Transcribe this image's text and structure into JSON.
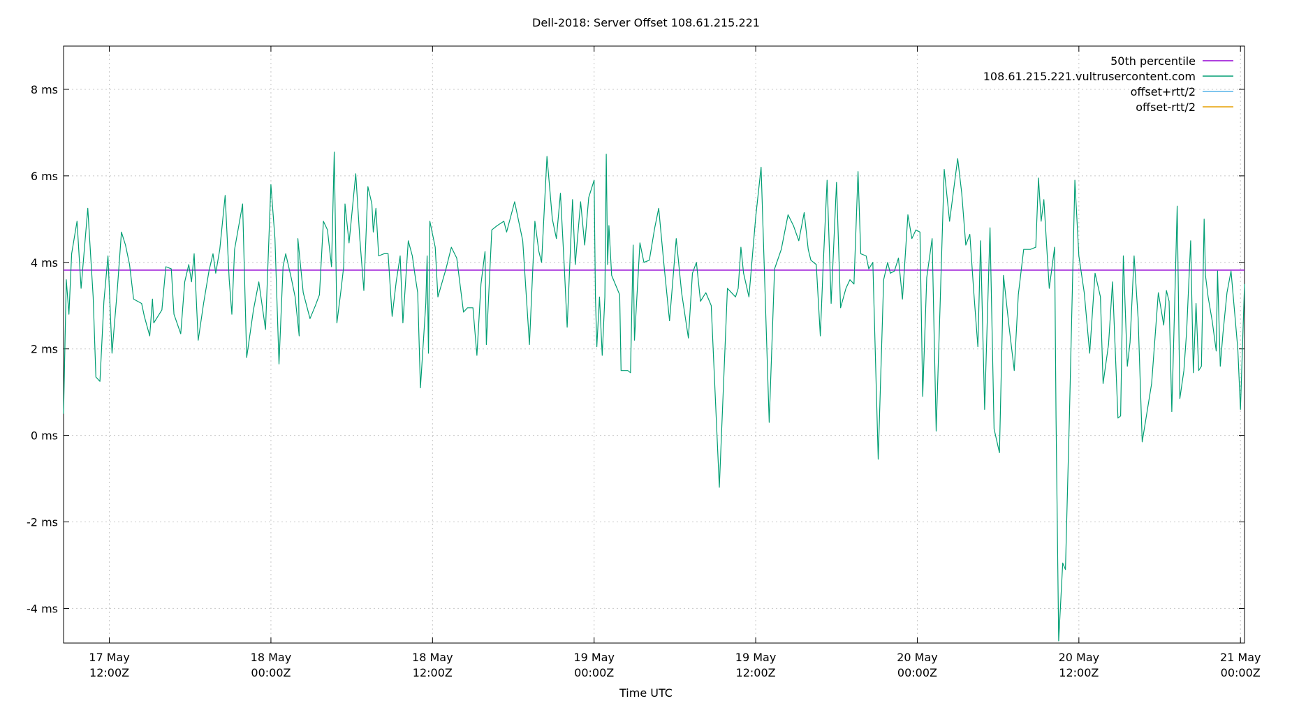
{
  "chart_data": {
    "type": "line",
    "title": "Dell-2018: Server Offset 108.61.215.221",
    "xlabel": "Time UTC",
    "ylabel": "",
    "x_unit": "hours since 17 May 00:00Z",
    "xlim": [
      8.6,
      96.3
    ],
    "ylim": [
      -4.8,
      9.0
    ],
    "grid": true,
    "legend_position": "top-right",
    "y_ticks": [
      {
        "value": -4,
        "label": "-4 ms"
      },
      {
        "value": -2,
        "label": "-2 ms"
      },
      {
        "value": 0,
        "label": "0 ms"
      },
      {
        "value": 2,
        "label": "2 ms"
      },
      {
        "value": 4,
        "label": "4 ms"
      },
      {
        "value": 6,
        "label": "6 ms"
      },
      {
        "value": 8,
        "label": "8 ms"
      }
    ],
    "x_ticks": [
      {
        "value": 12,
        "line1": "17 May",
        "line2": "12:00Z"
      },
      {
        "value": 24,
        "line1": "18 May",
        "line2": "00:00Z"
      },
      {
        "value": 36,
        "line1": "18 May",
        "line2": "12:00Z"
      },
      {
        "value": 48,
        "line1": "19 May",
        "line2": "00:00Z"
      },
      {
        "value": 60,
        "line1": "19 May",
        "line2": "12:00Z"
      },
      {
        "value": 72,
        "line1": "20 May",
        "line2": "00:00Z"
      },
      {
        "value": 84,
        "line1": "20 May",
        "line2": "12:00Z"
      },
      {
        "value": 96,
        "line1": "21 May",
        "line2": "00:00Z"
      }
    ],
    "series": [
      {
        "name": "50th percentile",
        "color": "#9400d3",
        "type": "hline",
        "value": 3.82
      },
      {
        "name": "108.61.215.221.vultrusercontent.com",
        "color": "#009e73",
        "points": [
          [
            8.6,
            0.5
          ],
          [
            8.8,
            3.6
          ],
          [
            9.0,
            2.8
          ],
          [
            9.2,
            4.2
          ],
          [
            9.6,
            4.95
          ],
          [
            9.9,
            3.4
          ],
          [
            10.4,
            5.25
          ],
          [
            10.8,
            3.2
          ],
          [
            11.0,
            1.35
          ],
          [
            11.3,
            1.25
          ],
          [
            11.6,
            3.1
          ],
          [
            11.9,
            4.15
          ],
          [
            12.2,
            1.9
          ],
          [
            12.6,
            3.4
          ],
          [
            12.9,
            4.7
          ],
          [
            13.2,
            4.4
          ],
          [
            13.5,
            3.95
          ],
          [
            13.8,
            3.15
          ],
          [
            14.1,
            3.1
          ],
          [
            14.4,
            3.05
          ],
          [
            14.6,
            2.75
          ],
          [
            15.0,
            2.3
          ],
          [
            15.2,
            3.15
          ],
          [
            15.3,
            2.6
          ],
          [
            15.6,
            2.75
          ],
          [
            15.9,
            2.9
          ],
          [
            16.2,
            3.9
          ],
          [
            16.6,
            3.85
          ],
          [
            16.8,
            2.8
          ],
          [
            17.3,
            2.35
          ],
          [
            17.6,
            3.55
          ],
          [
            17.9,
            3.95
          ],
          [
            18.1,
            3.55
          ],
          [
            18.3,
            4.2
          ],
          [
            18.6,
            2.2
          ],
          [
            19.0,
            3.05
          ],
          [
            19.4,
            3.8
          ],
          [
            19.7,
            4.2
          ],
          [
            19.9,
            3.75
          ],
          [
            20.2,
            4.3
          ],
          [
            20.6,
            5.55
          ],
          [
            20.9,
            3.6
          ],
          [
            21.1,
            2.8
          ],
          [
            21.3,
            4.3
          ],
          [
            21.9,
            5.35
          ],
          [
            22.2,
            1.8
          ],
          [
            22.7,
            2.9
          ],
          [
            23.1,
            3.55
          ],
          [
            23.6,
            2.45
          ],
          [
            24.0,
            5.8
          ],
          [
            24.3,
            4.55
          ],
          [
            24.6,
            1.65
          ],
          [
            24.9,
            3.9
          ],
          [
            25.1,
            4.2
          ],
          [
            25.5,
            3.65
          ],
          [
            25.8,
            3.2
          ],
          [
            26.1,
            2.3
          ],
          [
            26.0,
            4.55
          ],
          [
            26.4,
            3.3
          ],
          [
            26.9,
            2.7
          ],
          [
            27.3,
            3.0
          ],
          [
            27.6,
            3.25
          ],
          [
            27.9,
            4.95
          ],
          [
            28.2,
            4.75
          ],
          [
            28.5,
            3.9
          ],
          [
            28.7,
            6.55
          ],
          [
            28.9,
            2.6
          ],
          [
            29.2,
            3.35
          ],
          [
            29.4,
            3.9
          ],
          [
            29.5,
            5.35
          ],
          [
            29.8,
            4.45
          ],
          [
            30.3,
            6.05
          ],
          [
            30.6,
            4.55
          ],
          [
            30.9,
            3.35
          ],
          [
            31.2,
            5.75
          ],
          [
            31.5,
            5.35
          ],
          [
            31.6,
            4.7
          ],
          [
            31.8,
            5.25
          ],
          [
            32.0,
            4.15
          ],
          [
            32.4,
            4.2
          ],
          [
            32.7,
            4.2
          ],
          [
            33.0,
            2.75
          ],
          [
            33.3,
            3.55
          ],
          [
            33.6,
            4.15
          ],
          [
            33.8,
            2.6
          ],
          [
            34.2,
            4.5
          ],
          [
            34.5,
            4.15
          ],
          [
            34.7,
            3.7
          ],
          [
            34.9,
            3.3
          ],
          [
            35.1,
            1.1
          ],
          [
            35.5,
            3.05
          ],
          [
            35.6,
            4.15
          ],
          [
            35.7,
            1.9
          ],
          [
            35.8,
            4.95
          ],
          [
            36.2,
            4.35
          ],
          [
            36.4,
            3.2
          ],
          [
            37.0,
            3.85
          ],
          [
            37.4,
            4.35
          ],
          [
            37.8,
            4.1
          ],
          [
            38.3,
            2.85
          ],
          [
            38.6,
            2.95
          ],
          [
            39.0,
            2.95
          ],
          [
            39.3,
            1.85
          ],
          [
            39.6,
            3.5
          ],
          [
            39.9,
            4.25
          ],
          [
            40.0,
            2.1
          ],
          [
            40.4,
            4.75
          ],
          [
            40.8,
            4.85
          ],
          [
            41.3,
            4.95
          ],
          [
            41.5,
            4.7
          ],
          [
            42.1,
            5.4
          ],
          [
            42.7,
            4.5
          ],
          [
            43.2,
            2.1
          ],
          [
            43.6,
            4.95
          ],
          [
            43.9,
            4.25
          ],
          [
            44.1,
            4.0
          ],
          [
            44.5,
            6.45
          ],
          [
            44.9,
            5.0
          ],
          [
            45.2,
            4.55
          ],
          [
            45.5,
            5.6
          ],
          [
            45.8,
            3.8
          ],
          [
            46.0,
            2.5
          ],
          [
            46.4,
            5.45
          ],
          [
            46.6,
            3.95
          ],
          [
            47.0,
            5.4
          ],
          [
            47.3,
            4.4
          ],
          [
            47.6,
            5.5
          ],
          [
            48.0,
            5.9
          ],
          [
            48.1,
            3.2
          ],
          [
            48.2,
            2.05
          ],
          [
            48.4,
            3.2
          ],
          [
            48.6,
            1.85
          ],
          [
            48.8,
            3.2
          ],
          [
            48.9,
            6.5
          ],
          [
            49.0,
            3.95
          ],
          [
            49.1,
            4.85
          ],
          [
            49.3,
            3.7
          ],
          [
            49.7,
            3.4
          ],
          [
            49.9,
            3.25
          ],
          [
            50.0,
            1.5
          ],
          [
            50.5,
            1.5
          ],
          [
            50.7,
            1.45
          ],
          [
            50.9,
            4.4
          ],
          [
            51.0,
            2.2
          ],
          [
            51.4,
            4.45
          ],
          [
            51.7,
            4.0
          ],
          [
            52.1,
            4.05
          ],
          [
            52.5,
            4.8
          ],
          [
            52.8,
            5.25
          ],
          [
            53.2,
            3.9
          ],
          [
            53.6,
            2.65
          ],
          [
            54.1,
            4.55
          ],
          [
            54.5,
            3.3
          ],
          [
            55.0,
            2.25
          ],
          [
            55.3,
            3.75
          ],
          [
            55.6,
            4.0
          ],
          [
            55.9,
            3.1
          ],
          [
            56.3,
            3.3
          ],
          [
            56.7,
            3.0
          ],
          [
            57.3,
            -1.2
          ],
          [
            57.9,
            3.4
          ],
          [
            58.2,
            3.3
          ],
          [
            58.5,
            3.2
          ],
          [
            58.7,
            3.4
          ],
          [
            58.9,
            4.35
          ],
          [
            59.1,
            3.75
          ],
          [
            59.5,
            3.2
          ],
          [
            60.0,
            5.05
          ],
          [
            60.4,
            6.2
          ],
          [
            61.0,
            0.3
          ],
          [
            61.4,
            3.85
          ],
          [
            61.9,
            4.3
          ],
          [
            62.4,
            5.1
          ],
          [
            62.8,
            4.85
          ],
          [
            63.2,
            4.5
          ],
          [
            63.6,
            5.15
          ],
          [
            63.9,
            4.3
          ],
          [
            64.1,
            4.05
          ],
          [
            64.5,
            3.95
          ],
          [
            64.8,
            2.3
          ],
          [
            65.0,
            3.85
          ],
          [
            65.3,
            5.9
          ],
          [
            65.6,
            3.05
          ],
          [
            66.0,
            5.85
          ],
          [
            66.3,
            2.95
          ],
          [
            66.7,
            3.4
          ],
          [
            67.0,
            3.6
          ],
          [
            67.3,
            3.5
          ],
          [
            67.6,
            6.1
          ],
          [
            67.8,
            4.2
          ],
          [
            68.2,
            4.15
          ],
          [
            68.4,
            3.85
          ],
          [
            68.7,
            4.0
          ],
          [
            69.1,
            -0.55
          ],
          [
            69.5,
            3.6
          ],
          [
            69.8,
            4.0
          ],
          [
            70.0,
            3.75
          ],
          [
            70.3,
            3.8
          ],
          [
            70.6,
            4.1
          ],
          [
            70.9,
            3.15
          ],
          [
            71.3,
            5.1
          ],
          [
            71.6,
            4.55
          ],
          [
            71.9,
            4.75
          ],
          [
            72.2,
            4.7
          ],
          [
            72.4,
            0.9
          ],
          [
            72.7,
            3.65
          ],
          [
            73.1,
            4.55
          ],
          [
            73.4,
            0.1
          ],
          [
            73.7,
            3.05
          ],
          [
            74.0,
            6.15
          ],
          [
            74.4,
            4.95
          ],
          [
            75.0,
            6.4
          ],
          [
            75.3,
            5.6
          ],
          [
            75.6,
            4.4
          ],
          [
            75.9,
            4.65
          ],
          [
            76.2,
            3.3
          ],
          [
            76.5,
            2.05
          ],
          [
            76.7,
            4.5
          ],
          [
            77.0,
            0.6
          ],
          [
            77.4,
            4.8
          ],
          [
            77.7,
            0.15
          ],
          [
            78.1,
            -0.4
          ],
          [
            78.4,
            3.7
          ],
          [
            78.8,
            2.55
          ],
          [
            79.2,
            1.5
          ],
          [
            79.5,
            3.25
          ],
          [
            79.9,
            4.3
          ],
          [
            80.4,
            4.3
          ],
          [
            80.8,
            4.35
          ],
          [
            81.0,
            5.95
          ],
          [
            81.2,
            4.95
          ],
          [
            81.4,
            5.45
          ],
          [
            81.8,
            3.4
          ],
          [
            82.2,
            4.35
          ],
          [
            82.3,
            0.45
          ],
          [
            82.5,
            -4.75
          ],
          [
            82.8,
            -2.95
          ],
          [
            83.0,
            -3.1
          ],
          [
            83.3,
            0.45
          ],
          [
            83.7,
            5.9
          ],
          [
            84.0,
            4.15
          ],
          [
            84.4,
            3.3
          ],
          [
            84.8,
            1.9
          ],
          [
            85.2,
            3.75
          ],
          [
            85.6,
            3.2
          ],
          [
            85.8,
            1.2
          ],
          [
            86.2,
            2.1
          ],
          [
            86.5,
            3.55
          ],
          [
            86.9,
            0.4
          ],
          [
            87.1,
            0.45
          ],
          [
            87.3,
            4.15
          ],
          [
            87.6,
            1.6
          ],
          [
            87.8,
            2.15
          ],
          [
            88.1,
            4.15
          ],
          [
            88.4,
            2.7
          ],
          [
            88.7,
            -0.15
          ],
          [
            89.4,
            1.2
          ],
          [
            89.9,
            3.3
          ],
          [
            90.3,
            2.55
          ],
          [
            90.5,
            3.35
          ],
          [
            90.7,
            3.1
          ],
          [
            90.9,
            0.55
          ],
          [
            91.1,
            2.85
          ],
          [
            91.3,
            5.3
          ],
          [
            91.5,
            0.85
          ],
          [
            91.8,
            1.5
          ],
          [
            92.0,
            2.4
          ],
          [
            92.3,
            4.5
          ],
          [
            92.5,
            1.45
          ],
          [
            92.7,
            3.05
          ],
          [
            92.9,
            1.5
          ],
          [
            93.1,
            1.6
          ],
          [
            93.3,
            5.0
          ],
          [
            93.4,
            3.7
          ],
          [
            93.6,
            3.2
          ],
          [
            93.9,
            2.65
          ],
          [
            94.2,
            1.95
          ],
          [
            94.3,
            3.8
          ],
          [
            94.5,
            1.6
          ],
          [
            94.7,
            2.35
          ],
          [
            95.0,
            3.3
          ],
          [
            95.3,
            3.8
          ],
          [
            95.8,
            2.0
          ],
          [
            96.0,
            0.6
          ],
          [
            96.3,
            3.5
          ]
        ]
      },
      {
        "name": "offset+rtt/2",
        "color": "#56b4e9",
        "points": []
      },
      {
        "name": "offset-rtt/2",
        "color": "#e69f00",
        "points": []
      }
    ]
  }
}
